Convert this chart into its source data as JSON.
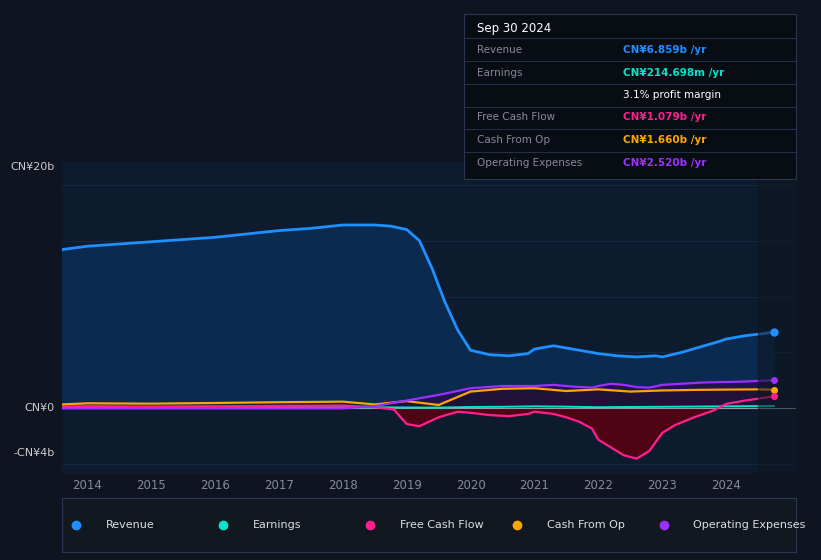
{
  "bg_color": "#0e1520",
  "chart_bg": "#0d1b2e",
  "revenue_color": "#1e90ff",
  "earnings_color": "#00e5cc",
  "fcf_color": "#ff1f8e",
  "cashop_color": "#ffa500",
  "opex_color": "#9b30ff",
  "ylabel_top": "CN¥20b",
  "ylabel_zero": "CN¥0",
  "ylabel_bottom": "-CN¥4b",
  "ylim_top": 22,
  "ylim_bottom": -5.8,
  "grid_color": "#1a2a40",
  "table_title": "Sep 30 2024",
  "table_rows": [
    {
      "label": "Revenue",
      "value": "CN¥6.859b /yr",
      "color": "#1e90ff"
    },
    {
      "label": "Earnings",
      "value": "CN¥214.698m /yr",
      "color": "#00e5cc"
    },
    {
      "label": "",
      "value": "3.1% profit margin",
      "color": "#ffffff"
    },
    {
      "label": "Free Cash Flow",
      "value": "CN¥1.079b /yr",
      "color": "#ff1f8e"
    },
    {
      "label": "Cash From Op",
      "value": "CN¥1.660b /yr",
      "color": "#ffa500"
    },
    {
      "label": "Operating Expenses",
      "value": "CN¥2.520b /yr",
      "color": "#9b30ff"
    }
  ],
  "legend_items": [
    {
      "label": "Revenue",
      "color": "#1e90ff"
    },
    {
      "label": "Earnings",
      "color": "#00e5cc"
    },
    {
      "label": "Free Cash Flow",
      "color": "#ff1f8e"
    },
    {
      "label": "Cash From Op",
      "color": "#ffa500"
    },
    {
      "label": "Operating Expenses",
      "color": "#9b30ff"
    }
  ],
  "x_ticks": [
    2014,
    2015,
    2016,
    2017,
    2018,
    2019,
    2020,
    2021,
    2022,
    2023,
    2024
  ],
  "xlim": [
    2013.6,
    2025.1
  ]
}
